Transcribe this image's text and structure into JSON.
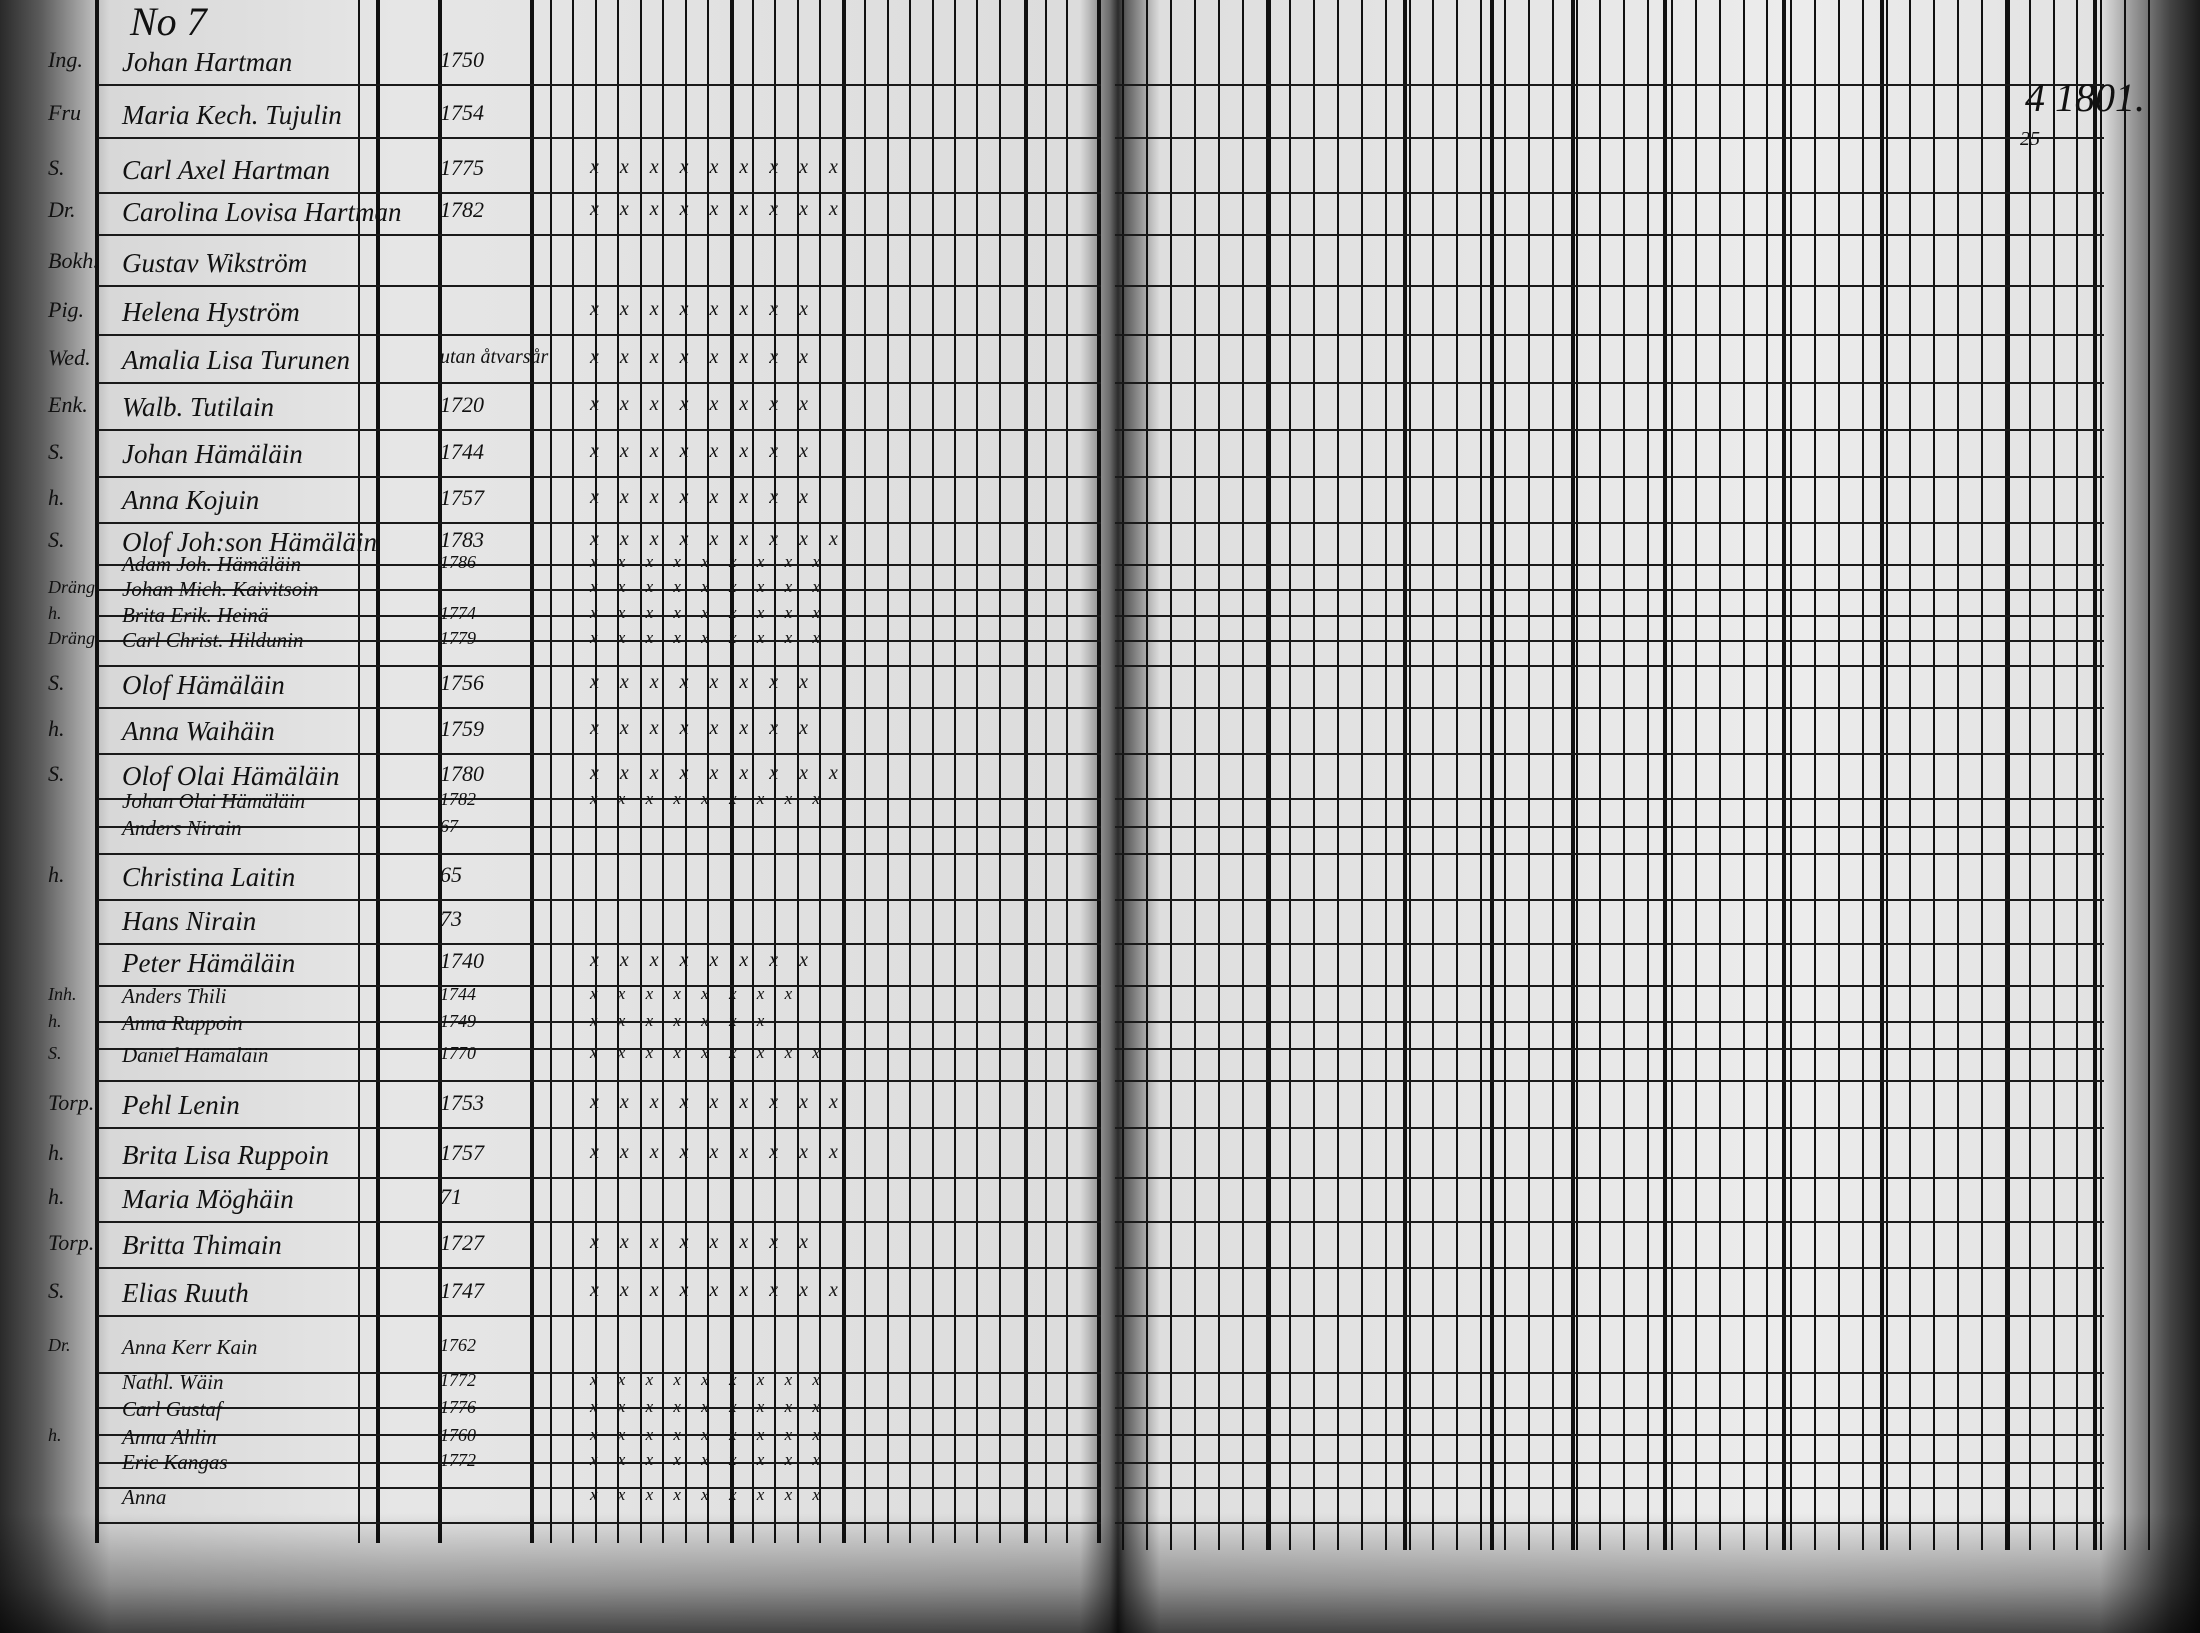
{
  "header": {
    "register_number": "No 7",
    "right_year_note": "4 1801.",
    "right_sub_note": "25"
  },
  "annotation": "utan åtvarsår",
  "rows": [
    {
      "prefix": "Ing.",
      "name": "Johan Hartman",
      "year": "1750",
      "marks": ""
    },
    {
      "prefix": "Fru",
      "name": "Maria Kech. Tujulin",
      "year": "1754",
      "marks": ""
    },
    {
      "prefix": "S.",
      "name": "Carl Axel Hartman",
      "year": "1775",
      "marks": "x x x x x x x x x"
    },
    {
      "prefix": "Dr.",
      "name": "Carolina Lovisa Hartman",
      "year": "1782",
      "marks": "x x x x x x x x x"
    },
    {
      "prefix": "Bokh.",
      "name": "Gustav Wikström",
      "year": "",
      "marks": ""
    },
    {
      "prefix": "Pig.",
      "name": "Helena Hyström",
      "year": "",
      "marks": "x x x x x x x x"
    },
    {
      "prefix": "Wed.",
      "name": "Amalia Lisa Turunen",
      "year": "",
      "marks": "x x x x x x x x"
    },
    {
      "prefix": "Enk.",
      "name": "Walb. Tutilain",
      "year": "1720",
      "marks": "x x x x x x x x"
    },
    {
      "prefix": "S.",
      "name": "Johan Hämäläin",
      "year": "1744",
      "marks": "x x x x x x x x"
    },
    {
      "prefix": "h.",
      "name": "Anna Kojuin",
      "year": "1757",
      "marks": "x x x x x x x x"
    },
    {
      "prefix": "S.",
      "name": "Olof Joh:son Hämäläin",
      "year": "1783",
      "marks": "x x x x x x x x x"
    },
    {
      "prefix": "",
      "name": "Adam Joh. Hämäläin",
      "year": "1786",
      "marks": "x x x x x x x x x"
    },
    {
      "prefix": "Dräng",
      "name": "Johan Mich. Kaivitsoin",
      "year": "",
      "marks": "x x x x x x x x x"
    },
    {
      "prefix": "h.",
      "name": "Brita Erik. Heinä",
      "year": "1774",
      "marks": "x x x x x x x x x"
    },
    {
      "prefix": "Dräng",
      "name": "Carl Christ. Hildunin",
      "year": "1779",
      "marks": "x x x x x x x x x"
    },
    {
      "prefix": "S.",
      "name": "Olof Hämäläin",
      "year": "1756",
      "marks": "x x x x x x x x"
    },
    {
      "prefix": "h.",
      "name": "Anna Waihäin",
      "year": "1759",
      "marks": "x x x x x x x x"
    },
    {
      "prefix": "S.",
      "name": "Olof Olai Hämäläin",
      "year": "1780",
      "marks": "x x x x x x x x x"
    },
    {
      "prefix": "",
      "name": "Johan Olai Hämäläin",
      "year": "1782",
      "marks": "x x x x x x x x x"
    },
    {
      "prefix": "",
      "name": "Anders Nirain",
      "year": "67",
      "marks": ""
    },
    {
      "prefix": "h.",
      "name": "Christina Laitin",
      "year": "65",
      "marks": ""
    },
    {
      "prefix": "",
      "name": "Hans Nirain",
      "year": "73",
      "marks": ""
    },
    {
      "prefix": "",
      "name": "Peter Hämäläin",
      "year": "1740",
      "marks": "x x x x x x x x"
    },
    {
      "prefix": "Inh.",
      "name": "Anders Thili",
      "year": "1744",
      "marks": "x x x x x x x x"
    },
    {
      "prefix": "h.",
      "name": "Anna Ruppoin",
      "year": "1749",
      "marks": "x x x x x x x"
    },
    {
      "prefix": "S.",
      "name": "Daniel Hämäläin",
      "year": "1770",
      "marks": "x x x x x x x x x"
    },
    {
      "prefix": "Torp.",
      "name": "Pehl Lenin",
      "year": "1753",
      "marks": "x x x x x x x x x"
    },
    {
      "prefix": "h.",
      "name": "Brita Lisa Ruppoin",
      "year": "1757",
      "marks": "x x x x x x x x x"
    },
    {
      "prefix": "h.",
      "name": "Maria Möghäin",
      "year": "71",
      "marks": ""
    },
    {
      "prefix": "Torp.",
      "name": "Britta Thimain",
      "year": "1727",
      "marks": "x x x x x x x x"
    },
    {
      "prefix": "S.",
      "name": "Elias Ruuth",
      "year": "1747",
      "marks": "x x x x x x x x x"
    },
    {
      "prefix": "Dr.",
      "name": "Anna Kerr Kain",
      "year": "1762",
      "marks": ""
    },
    {
      "prefix": "",
      "name": "Nathl. Wäin",
      "year": "1772",
      "marks": "x x x x x x x x x"
    },
    {
      "prefix": "",
      "name": "Carl Gustaf",
      "year": "1776",
      "marks": "x x x x x x x x x"
    },
    {
      "prefix": "h.",
      "name": "Anna Ahlin",
      "year": "1760",
      "marks": "x x x x x x x x x"
    },
    {
      "prefix": "",
      "name": "Eric Kangas",
      "year": "1772",
      "marks": "x x x x x x x x x"
    },
    {
      "prefix": "",
      "name": "Anna",
      "year": "",
      "marks": "x x x x x x x x x"
    }
  ]
}
